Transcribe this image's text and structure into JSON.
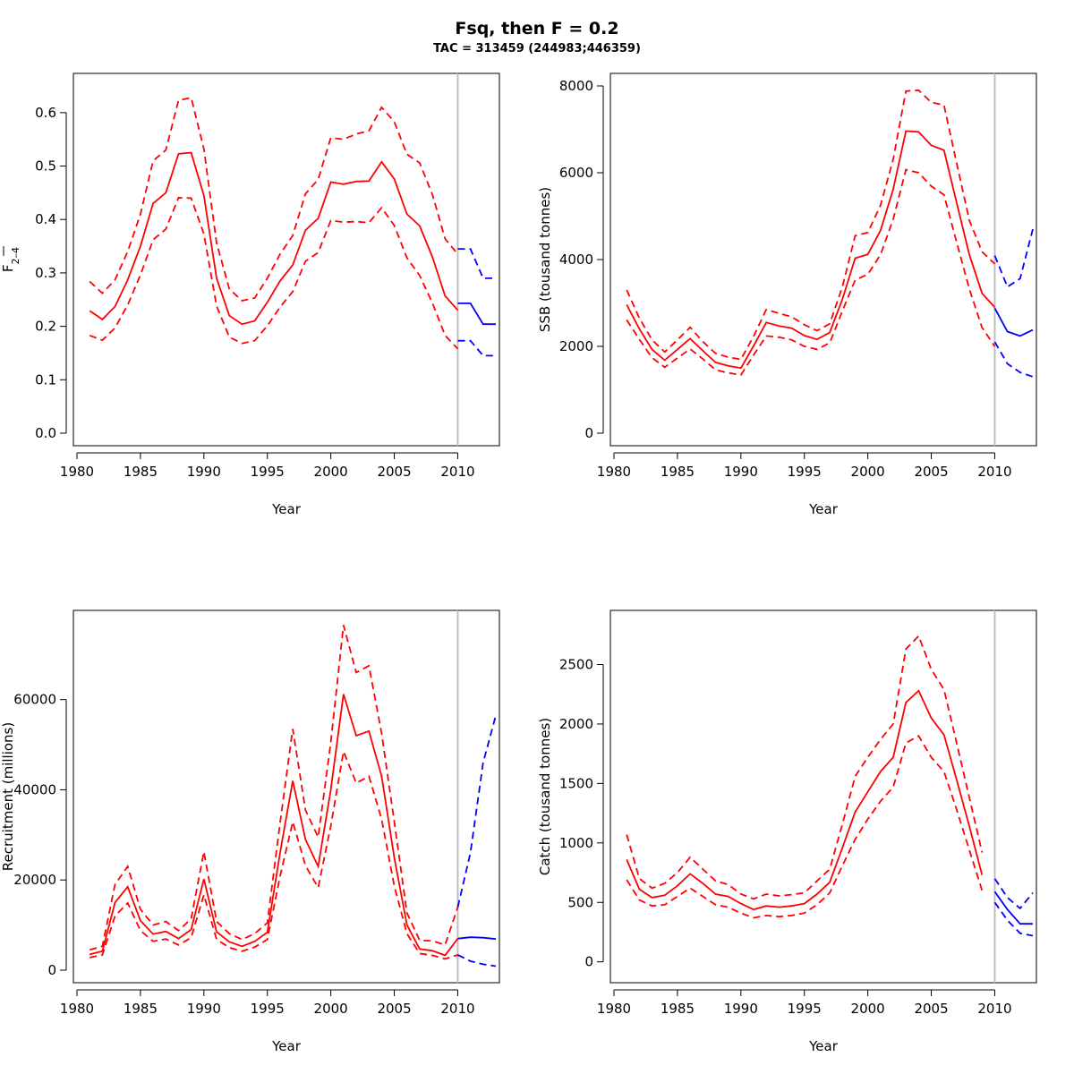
{
  "title": "Fsq, then F = 0.2",
  "subtitle": "TAC = 313459 (244983;446359)",
  "colors": {
    "historic": "#ff0000",
    "forecast": "#0000ff",
    "vline": "#bebebe",
    "axis": "#000000"
  },
  "chart_data": [
    {
      "type": "line",
      "name": "F",
      "ylabel_main": "F",
      "ylabel_sub": "2–4",
      "xlabel": "Year",
      "xlim": [
        1980,
        2013
      ],
      "ylim": [
        0,
        0.65
      ],
      "xticks": [
        1980,
        1985,
        1990,
        1995,
        2000,
        2005,
        2010
      ],
      "yticks": [
        0.0,
        0.1,
        0.2,
        0.3,
        0.4,
        0.5,
        0.6
      ],
      "ytick_labels": [
        "0.0",
        "0.1",
        "0.2",
        "0.3",
        "0.4",
        "0.5",
        "0.6"
      ],
      "vline": 2010,
      "x": [
        1981,
        1982,
        1983,
        1984,
        1985,
        1986,
        1987,
        1988,
        1989,
        1990,
        1991,
        1992,
        1993,
        1994,
        1995,
        1996,
        1997,
        1998,
        1999,
        2000,
        2001,
        2002,
        2003,
        2004,
        2005,
        2006,
        2007,
        2008,
        2009,
        2010
      ],
      "series": [
        {
          "name": "estimate",
          "style": "solid",
          "values": [
            0.229,
            0.213,
            0.237,
            0.287,
            0.35,
            0.43,
            0.45,
            0.523,
            0.525,
            0.445,
            0.29,
            0.22,
            0.204,
            0.21,
            0.245,
            0.285,
            0.315,
            0.38,
            0.402,
            0.47,
            0.466,
            0.471,
            0.472,
            0.508,
            0.476,
            0.41,
            0.388,
            0.33,
            0.257,
            0.23
          ]
        },
        {
          "name": "upper",
          "style": "dashed",
          "values": [
            0.284,
            0.262,
            0.287,
            0.34,
            0.41,
            0.51,
            0.53,
            0.623,
            0.628,
            0.532,
            0.356,
            0.27,
            0.248,
            0.253,
            0.29,
            0.335,
            0.37,
            0.448,
            0.475,
            0.553,
            0.55,
            0.56,
            0.566,
            0.61,
            0.583,
            0.522,
            0.506,
            0.447,
            0.364,
            0.335
          ]
        },
        {
          "name": "lower",
          "style": "dashed",
          "values": [
            0.183,
            0.174,
            0.197,
            0.24,
            0.296,
            0.362,
            0.382,
            0.441,
            0.44,
            0.373,
            0.238,
            0.18,
            0.168,
            0.173,
            0.201,
            0.236,
            0.265,
            0.322,
            0.338,
            0.398,
            0.395,
            0.396,
            0.394,
            0.422,
            0.389,
            0.328,
            0.295,
            0.244,
            0.183,
            0.158
          ]
        }
      ],
      "forecast_x": [
        2010,
        2011,
        2012,
        2013
      ],
      "forecast": [
        {
          "name": "estimate",
          "style": "solid",
          "values": [
            0.243,
            0.243,
            0.204,
            0.204
          ]
        },
        {
          "name": "upper",
          "style": "dashed",
          "values": [
            0.345,
            0.345,
            0.29,
            0.29
          ]
        },
        {
          "name": "lower",
          "style": "dashed",
          "values": [
            0.173,
            0.173,
            0.145,
            0.145
          ]
        }
      ]
    },
    {
      "type": "line",
      "name": "SSB",
      "ylabel_main": "SSB (tousand tonnes)",
      "xlabel": "Year",
      "xlim": [
        1980,
        2013
      ],
      "ylim": [
        0,
        8000
      ],
      "xticks": [
        1980,
        1985,
        1990,
        1995,
        2000,
        2005,
        2010
      ],
      "yticks": [
        0,
        2000,
        4000,
        6000,
        8000
      ],
      "ytick_labels": [
        "0",
        "2000",
        "4000",
        "6000",
        "8000"
      ],
      "vline": 2010,
      "x": [
        1981,
        1982,
        1983,
        1984,
        1985,
        1986,
        1987,
        1988,
        1989,
        1990,
        1991,
        1992,
        1993,
        1994,
        1995,
        1996,
        1997,
        1998,
        1999,
        2000,
        2001,
        2002,
        2003,
        2004,
        2005,
        2006,
        2007,
        2008,
        2009,
        2010
      ],
      "series": [
        {
          "name": "estimate",
          "style": "solid",
          "values": [
            2960,
            2400,
            1930,
            1680,
            1930,
            2180,
            1900,
            1630,
            1550,
            1500,
            2010,
            2550,
            2470,
            2420,
            2250,
            2160,
            2320,
            3090,
            4030,
            4120,
            4670,
            5620,
            6960,
            6940,
            6630,
            6520,
            5310,
            4110,
            3220,
            2900
          ]
        },
        {
          "name": "upper",
          "style": "dashed",
          "values": [
            3300,
            2650,
            2150,
            1870,
            2150,
            2440,
            2110,
            1840,
            1750,
            1700,
            2230,
            2850,
            2760,
            2680,
            2500,
            2360,
            2520,
            3380,
            4550,
            4620,
            5250,
            6310,
            7880,
            7900,
            7620,
            7560,
            6220,
            4900,
            4180,
            3900
          ]
        },
        {
          "name": "lower",
          "style": "dashed",
          "values": [
            2610,
            2160,
            1740,
            1520,
            1730,
            1940,
            1710,
            1460,
            1390,
            1340,
            1800,
            2240,
            2210,
            2150,
            2000,
            1930,
            2080,
            2820,
            3530,
            3660,
            4110,
            4930,
            6070,
            6000,
            5690,
            5490,
            4400,
            3320,
            2430,
            2000
          ]
        }
      ],
      "forecast_x": [
        2010,
        2011,
        2012,
        2013
      ],
      "forecast": [
        {
          "name": "estimate",
          "style": "solid",
          "values": [
            2880,
            2340,
            2240,
            2380
          ]
        },
        {
          "name": "upper",
          "style": "dashed",
          "values": [
            4090,
            3370,
            3560,
            4700
          ]
        },
        {
          "name": "lower",
          "style": "dashed",
          "values": [
            2100,
            1600,
            1400,
            1300
          ]
        }
      ]
    },
    {
      "type": "line",
      "name": "Recruitment",
      "ylabel_main": "Recruitment (millions)",
      "xlabel": "Year",
      "xlim": [
        1980,
        2013
      ],
      "ylim": [
        0,
        77000
      ],
      "xticks": [
        1980,
        1985,
        1990,
        1995,
        2000,
        2005,
        2010
      ],
      "yticks": [
        0,
        20000,
        40000,
        60000
      ],
      "ytick_labels": [
        "0",
        "20000",
        "40000",
        "60000"
      ],
      "vline": 2010,
      "x": [
        1981,
        1982,
        1983,
        1984,
        1985,
        1986,
        1987,
        1988,
        1989,
        1990,
        1991,
        1992,
        1993,
        1994,
        1995,
        1996,
        1997,
        1998,
        1999,
        2000,
        2001,
        2002,
        2003,
        2004,
        2005,
        2006,
        2007,
        2008,
        2009,
        2010
      ],
      "series": [
        {
          "name": "estimate",
          "style": "solid",
          "values": [
            3500,
            4200,
            15000,
            18500,
            11000,
            8000,
            8600,
            7000,
            9000,
            20200,
            8500,
            6300,
            5300,
            6400,
            8400,
            26000,
            42000,
            29000,
            23000,
            40000,
            61200,
            52000,
            53000,
            43000,
            25000,
            10000,
            4700,
            4300,
            3300,
            7000
          ]
        },
        {
          "name": "upper",
          "style": "dashed",
          "values": [
            4500,
            5300,
            19000,
            23000,
            13500,
            10000,
            10800,
            8800,
            11400,
            26300,
            10800,
            8100,
            6800,
            8100,
            10500,
            32600,
            53500,
            35500,
            29500,
            50500,
            76500,
            66000,
            67500,
            52500,
            33000,
            12700,
            6600,
            6500,
            5600,
            14000
          ]
        },
        {
          "name": "lower",
          "style": "dashed",
          "values": [
            2800,
            3400,
            12000,
            14900,
            8800,
            6400,
            6900,
            5600,
            7200,
            16700,
            6800,
            5000,
            4200,
            5100,
            6800,
            20800,
            32900,
            23200,
            18300,
            32000,
            48500,
            41500,
            43000,
            33500,
            18700,
            8100,
            3700,
            3300,
            2500,
            3400
          ]
        }
      ],
      "forecast_x": [
        2010,
        2011,
        2012,
        2013
      ],
      "forecast": [
        {
          "name": "estimate",
          "style": "solid",
          "values": [
            7000,
            7300,
            7200,
            6900
          ]
        },
        {
          "name": "upper",
          "style": "dashed",
          "values": [
            14000,
            26000,
            46000,
            56500
          ]
        },
        {
          "name": "lower",
          "style": "dashed",
          "values": [
            3400,
            2000,
            1300,
            900
          ]
        }
      ]
    },
    {
      "type": "line",
      "name": "Catch",
      "ylabel_main": "Catch (tousand tonnes)",
      "xlabel": "Year",
      "xlim": [
        1980,
        2013
      ],
      "ylim": [
        -70,
        2850
      ],
      "xticks": [
        1980,
        1985,
        1990,
        1995,
        2000,
        2005,
        2010
      ],
      "yticks": [
        0,
        500,
        1000,
        1500,
        2000,
        2500
      ],
      "ytick_labels": [
        "0",
        "500",
        "1000",
        "1500",
        "2000",
        "2500"
      ],
      "vline": 2010,
      "x": [
        1981,
        1982,
        1983,
        1984,
        1985,
        1986,
        1987,
        1988,
        1989,
        1990,
        1991,
        1992,
        1993,
        1994,
        1995,
        1996,
        1997,
        1998,
        1999,
        2000,
        2001,
        2002,
        2003,
        2004,
        2005,
        2006,
        2007,
        2008,
        2009
      ],
      "series": [
        {
          "name": "estimate",
          "style": "solid",
          "values": [
            860,
            610,
            540,
            560,
            640,
            740,
            660,
            570,
            550,
            490,
            440,
            470,
            460,
            470,
            490,
            570,
            670,
            960,
            1260,
            1430,
            1600,
            1720,
            2180,
            2280,
            2050,
            1910,
            1530,
            1140,
            730
          ]
        },
        {
          "name": "upper",
          "style": "dashed",
          "values": [
            1070,
            700,
            620,
            660,
            750,
            880,
            780,
            680,
            650,
            570,
            530,
            570,
            555,
            565,
            580,
            680,
            780,
            1160,
            1560,
            1720,
            1870,
            2000,
            2630,
            2740,
            2460,
            2290,
            1840,
            1380,
            920
          ]
        },
        {
          "name": "lower",
          "style": "dashed",
          "values": [
            690,
            520,
            470,
            480,
            550,
            620,
            550,
            480,
            460,
            410,
            370,
            390,
            380,
            390,
            410,
            480,
            580,
            810,
            1030,
            1200,
            1350,
            1470,
            1840,
            1900,
            1720,
            1600,
            1280,
            940,
            600
          ]
        }
      ],
      "forecast_x": [
        2010,
        2011,
        2012,
        2013
      ],
      "forecast": [
        {
          "name": "estimate",
          "style": "solid",
          "values": [
            590,
            440,
            320,
            320
          ]
        },
        {
          "name": "upper",
          "style": "dashed",
          "values": [
            700,
            540,
            450,
            580
          ]
        },
        {
          "name": "lower",
          "style": "dashed",
          "values": [
            500,
            350,
            240,
            220
          ]
        }
      ]
    }
  ]
}
